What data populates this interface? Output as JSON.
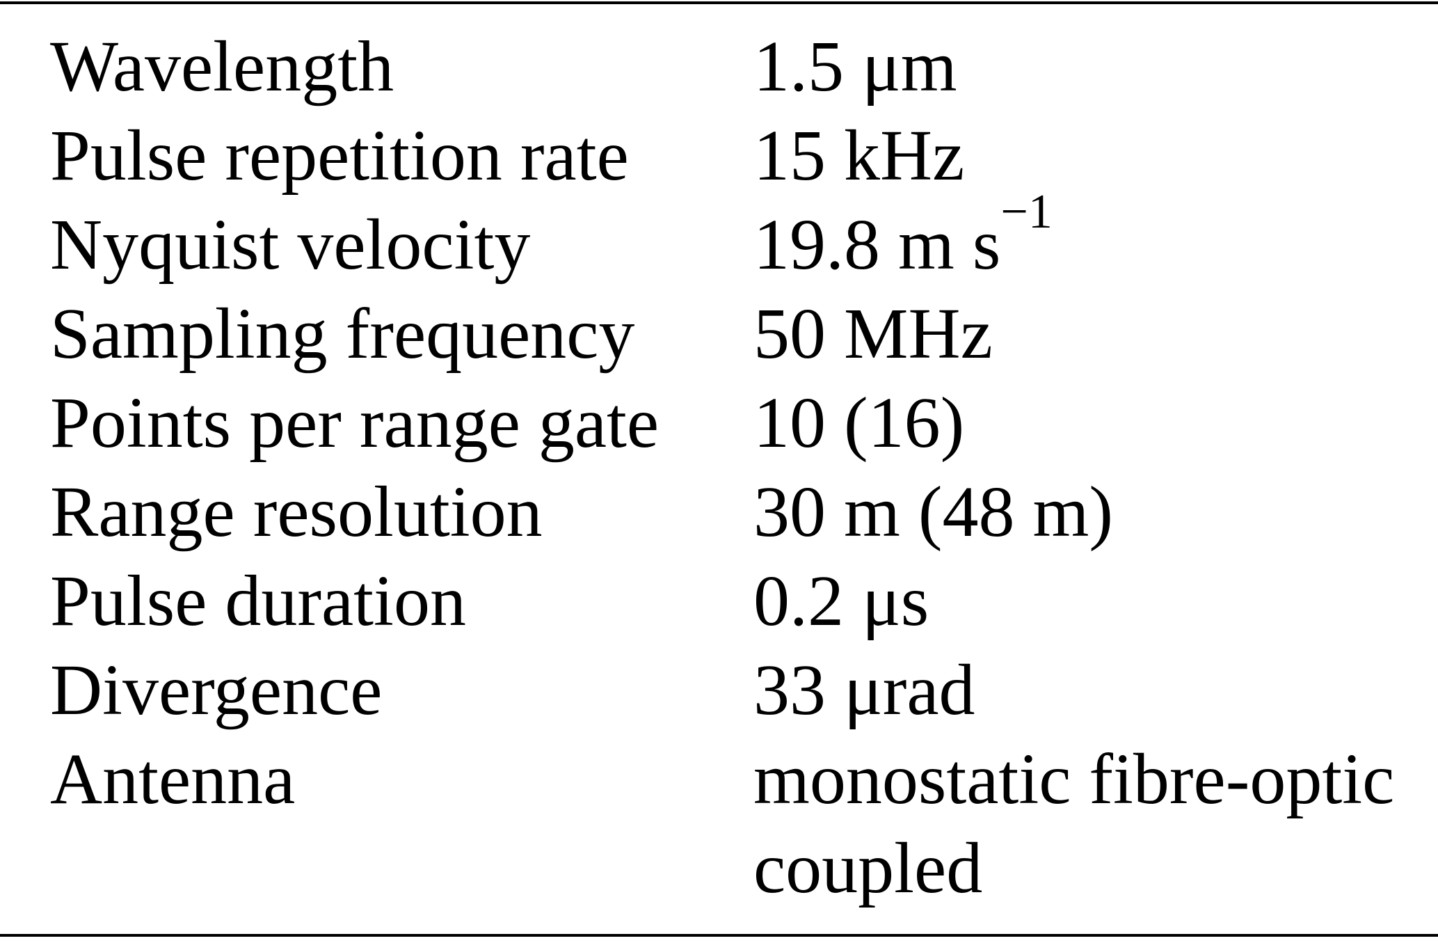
{
  "table": {
    "rows": [
      [
        "Wavelength",
        "1.5 μm"
      ],
      [
        "Pulse repetition rate",
        "15 kHz"
      ],
      [
        "Nyquist velocity",
        {
          "text": "19.8 m s",
          "superscript": "−1"
        }
      ],
      [
        "Sampling frequency",
        "50 MHz"
      ],
      [
        "Points per range gate",
        "10 (16)"
      ],
      [
        "Range resolution",
        "30 m (48 m)"
      ],
      [
        "Pulse duration",
        "0.2 μs"
      ],
      [
        "Divergence",
        "33 μrad"
      ],
      [
        "Antenna",
        "monostatic fibre-optic coupled"
      ]
    ]
  }
}
